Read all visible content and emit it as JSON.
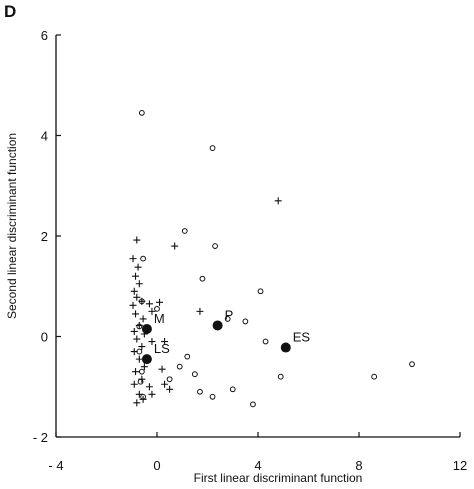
{
  "panel_letter": "D",
  "chart_data": {
    "type": "scatter",
    "title": "",
    "xlabel": "First linear discriminant function",
    "ylabel": "Second linear discriminant function",
    "xlim": [
      -4,
      12
    ],
    "ylim": [
      -2,
      6
    ],
    "xticks": [
      -4,
      0,
      4,
      8,
      12
    ],
    "xtick_labels": [
      "- 4",
      "0",
      "4",
      "8",
      "12"
    ],
    "yticks": [
      -2,
      0,
      2,
      4,
      6
    ],
    "ytick_labels": [
      "- 2",
      "0",
      "2",
      "4",
      "6"
    ],
    "grid": false,
    "series": [
      {
        "marker": "open-circle",
        "points": [
          [
            -0.6,
            4.45
          ],
          [
            2.2,
            3.75
          ],
          [
            1.1,
            2.1
          ],
          [
            2.3,
            1.8
          ],
          [
            1.8,
            1.15
          ],
          [
            4.1,
            0.9
          ],
          [
            0.0,
            0.55
          ],
          [
            2.8,
            0.35
          ],
          [
            3.5,
            0.3
          ],
          [
            4.3,
            -0.1
          ],
          [
            1.2,
            -0.4
          ],
          [
            0.9,
            -0.6
          ],
          [
            1.5,
            -0.75
          ],
          [
            0.5,
            -0.85
          ],
          [
            4.9,
            -0.8
          ],
          [
            3.0,
            -1.05
          ],
          [
            1.7,
            -1.1
          ],
          [
            2.2,
            -1.2
          ],
          [
            3.8,
            -1.35
          ],
          [
            8.6,
            -0.8
          ],
          [
            10.1,
            -0.55
          ],
          [
            -0.55,
            1.55
          ],
          [
            -0.6,
            0.7
          ],
          [
            -0.7,
            0.2
          ],
          [
            -0.6,
            -0.7
          ],
          [
            -0.65,
            -0.9
          ],
          [
            -0.55,
            -1.2
          ],
          [
            -0.7,
            -0.3
          ]
        ]
      },
      {
        "marker": "plus",
        "points": [
          [
            4.8,
            2.7
          ],
          [
            0.7,
            1.8
          ],
          [
            -0.8,
            1.92
          ],
          [
            -0.95,
            1.55
          ],
          [
            -0.75,
            1.38
          ],
          [
            -0.85,
            1.2
          ],
          [
            -0.7,
            1.05
          ],
          [
            -0.9,
            0.9
          ],
          [
            -0.8,
            0.78
          ],
          [
            -0.95,
            0.62
          ],
          [
            -0.6,
            0.7
          ],
          [
            -0.3,
            0.65
          ],
          [
            0.1,
            0.68
          ],
          [
            -0.2,
            0.5
          ],
          [
            1.7,
            0.5
          ],
          [
            -0.85,
            0.45
          ],
          [
            -0.55,
            0.35
          ],
          [
            -0.7,
            0.22
          ],
          [
            -0.9,
            0.1
          ],
          [
            -0.5,
            0.05
          ],
          [
            -0.8,
            -0.05
          ],
          [
            -0.6,
            -0.2
          ],
          [
            -0.9,
            -0.3
          ],
          [
            -0.2,
            -0.1
          ],
          [
            0.3,
            -0.1
          ],
          [
            -0.7,
            -0.45
          ],
          [
            -0.5,
            -0.6
          ],
          [
            -0.85,
            -0.7
          ],
          [
            -0.6,
            -0.85
          ],
          [
            0.2,
            -0.65
          ],
          [
            -0.9,
            -0.95
          ],
          [
            -0.3,
            -1.0
          ],
          [
            0.3,
            -0.95
          ],
          [
            0.5,
            -1.05
          ],
          [
            -0.7,
            -1.15
          ],
          [
            -0.55,
            -1.25
          ],
          [
            -0.8,
            -1.32
          ],
          [
            -0.2,
            -1.15
          ]
        ]
      },
      {
        "marker": "filled-circle",
        "labeled": true,
        "points": [
          {
            "x": 2.4,
            "y": 0.22,
            "label": "P"
          },
          {
            "x": -0.4,
            "y": 0.15,
            "label": "M"
          },
          {
            "x": 5.1,
            "y": -0.22,
            "label": "ES"
          },
          {
            "x": -0.4,
            "y": -0.45,
            "label": "LS"
          }
        ]
      }
    ]
  }
}
